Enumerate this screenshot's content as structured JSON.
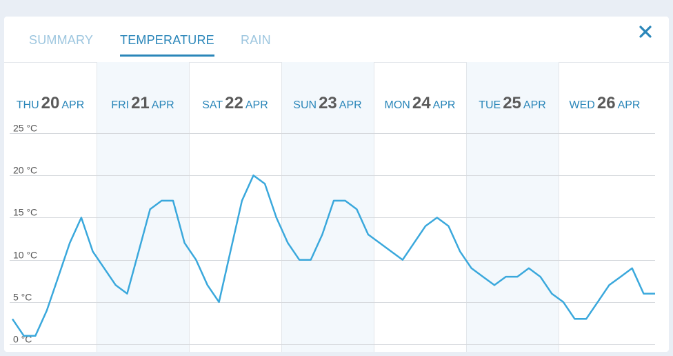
{
  "tabs": [
    {
      "label": "SUMMARY",
      "active": false
    },
    {
      "label": "TEMPERATURE",
      "active": true
    },
    {
      "label": "RAIN",
      "active": false
    }
  ],
  "close_icon": "close-icon",
  "colors": {
    "accent": "#2a86b9",
    "line": "#3aa8dc",
    "band": "#f3f8fc",
    "grid": "#d6d9dd"
  },
  "days": [
    {
      "dow": "THU",
      "day": "20",
      "mon": "APR"
    },
    {
      "dow": "FRI",
      "day": "21",
      "mon": "APR"
    },
    {
      "dow": "SAT",
      "day": "22",
      "mon": "APR"
    },
    {
      "dow": "SUN",
      "day": "23",
      "mon": "APR"
    },
    {
      "dow": "MON",
      "day": "24",
      "mon": "APR"
    },
    {
      "dow": "TUE",
      "day": "25",
      "mon": "APR"
    },
    {
      "dow": "WED",
      "day": "26",
      "mon": "APR"
    }
  ],
  "chart_data": {
    "type": "line",
    "ylim": [
      0,
      25
    ],
    "ytick_labels": [
      "0 °C",
      "5 °C",
      "10 °C",
      "15 °C",
      "20 °C",
      "25 °C"
    ],
    "yticks": [
      0,
      5,
      10,
      15,
      20,
      25
    ],
    "grid": true,
    "series": [
      {
        "values": [
          3,
          1,
          1,
          4,
          8,
          12,
          15,
          11,
          9,
          7,
          6,
          11,
          16,
          17,
          17,
          12,
          10,
          7,
          5,
          11,
          17,
          20,
          19,
          15,
          12,
          10,
          10,
          13,
          17,
          17,
          16,
          13,
          12,
          11,
          10,
          12,
          14,
          15,
          14,
          11,
          9,
          8,
          7,
          8,
          8,
          9,
          8,
          6,
          5,
          3,
          3,
          5,
          7,
          8,
          9,
          6,
          6
        ]
      }
    ]
  }
}
